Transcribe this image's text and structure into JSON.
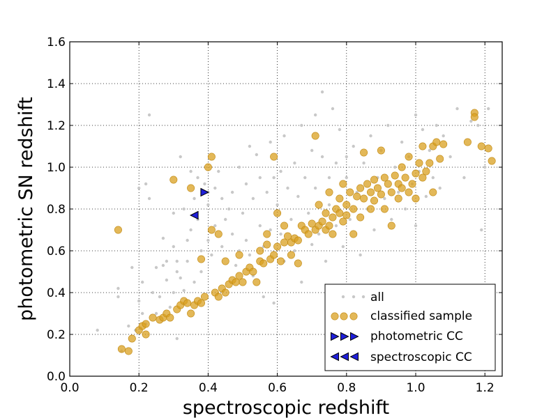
{
  "chart_data": {
    "type": "scatter",
    "title": "",
    "xlabel": "spectroscopic redshift",
    "ylabel": "photometric SN redshift",
    "xlim": [
      0.0,
      1.25
    ],
    "ylim": [
      0.0,
      1.6
    ],
    "xticks": [
      "0.0",
      "0.2",
      "0.4",
      "0.6",
      "0.8",
      "1.0",
      "1.2"
    ],
    "yticks": [
      "0.0",
      "0.2",
      "0.4",
      "0.6",
      "0.8",
      "1.0",
      "1.2",
      "1.4",
      "1.6"
    ],
    "grid": true,
    "legend_position": "lower-right",
    "colors": {
      "all": "#c8c8c8",
      "classified": "#daa020",
      "cc_fill": "#1f1fd8",
      "cc_edge": "#000000"
    },
    "series": [
      {
        "name": "all",
        "marker": "small-dot",
        "points": [
          [
            0.08,
            0.22
          ],
          [
            0.14,
            0.38
          ],
          [
            0.14,
            0.42
          ],
          [
            0.15,
            0.12
          ],
          [
            0.17,
            0.24
          ],
          [
            0.18,
            0.52
          ],
          [
            0.19,
            0.22
          ],
          [
            0.2,
            0.36
          ],
          [
            0.2,
            0.9
          ],
          [
            0.21,
            0.45
          ],
          [
            0.21,
            0.3
          ],
          [
            0.22,
            0.25
          ],
          [
            0.22,
            0.92
          ],
          [
            0.23,
            0.85
          ],
          [
            0.23,
            1.25
          ],
          [
            0.24,
            0.4
          ],
          [
            0.25,
            0.3
          ],
          [
            0.25,
            0.52
          ],
          [
            0.26,
            0.38
          ],
          [
            0.27,
            0.53
          ],
          [
            0.27,
            0.66
          ],
          [
            0.28,
            0.46
          ],
          [
            0.28,
            0.55
          ],
          [
            0.29,
            0.33
          ],
          [
            0.3,
            0.78
          ],
          [
            0.3,
            0.4
          ],
          [
            0.3,
            0.62
          ],
          [
            0.31,
            0.55
          ],
          [
            0.31,
            0.18
          ],
          [
            0.31,
            0.5
          ],
          [
            0.32,
            0.47
          ],
          [
            0.32,
            1.05
          ],
          [
            0.33,
            0.8
          ],
          [
            0.33,
            0.41
          ],
          [
            0.34,
            0.65
          ],
          [
            0.34,
            0.55
          ],
          [
            0.35,
            0.7
          ],
          [
            0.35,
            0.98
          ],
          [
            0.36,
            0.85
          ],
          [
            0.36,
            0.45
          ],
          [
            0.37,
            0.95
          ],
          [
            0.37,
            0.75
          ],
          [
            0.38,
            0.6
          ],
          [
            0.38,
            0.5
          ],
          [
            0.39,
            0.92
          ],
          [
            0.4,
            0.82
          ],
          [
            0.4,
            0.88
          ],
          [
            0.4,
            0.65
          ],
          [
            0.41,
            0.58
          ],
          [
            0.42,
            0.9
          ],
          [
            0.42,
            0.72
          ],
          [
            0.43,
            0.98
          ],
          [
            0.44,
            0.85
          ],
          [
            0.44,
            0.62
          ],
          [
            0.45,
            0.75
          ],
          [
            0.46,
            0.8
          ],
          [
            0.47,
            0.68
          ],
          [
            0.47,
            0.88
          ],
          [
            0.48,
            0.53
          ],
          [
            0.49,
            1.0
          ],
          [
            0.49,
            0.6
          ],
          [
            0.5,
            0.78
          ],
          [
            0.51,
            0.92
          ],
          [
            0.51,
            0.65
          ],
          [
            0.52,
            1.1
          ],
          [
            0.52,
            0.58
          ],
          [
            0.53,
            0.85
          ],
          [
            0.53,
            0.48
          ],
          [
            0.54,
            1.06
          ],
          [
            0.55,
            0.95
          ],
          [
            0.55,
            0.72
          ],
          [
            0.56,
            0.38
          ],
          [
            0.56,
            0.62
          ],
          [
            0.57,
            0.88
          ],
          [
            0.58,
            1.12
          ],
          [
            0.58,
            0.7
          ],
          [
            0.59,
            0.95
          ],
          [
            0.59,
            0.35
          ],
          [
            0.6,
            0.82
          ],
          [
            0.61,
            0.68
          ],
          [
            0.61,
            0.98
          ],
          [
            0.62,
            1.15
          ],
          [
            0.62,
            0.55
          ],
          [
            0.63,
            0.9
          ],
          [
            0.64,
            0.75
          ],
          [
            0.65,
            1.02
          ],
          [
            0.65,
            0.6
          ],
          [
            0.66,
            0.86
          ],
          [
            0.67,
            1.2
          ],
          [
            0.67,
            0.45
          ],
          [
            0.68,
            0.95
          ],
          [
            0.69,
            0.78
          ],
          [
            0.7,
            1.08
          ],
          [
            0.7,
            0.63
          ],
          [
            0.71,
            0.9
          ],
          [
            0.71,
            1.25
          ],
          [
            0.72,
            0.68
          ],
          [
            0.73,
            1.36
          ],
          [
            0.73,
            1.05
          ],
          [
            0.74,
            0.55
          ],
          [
            0.75,
            0.95
          ],
          [
            0.75,
            0.82
          ],
          [
            0.76,
            1.28
          ],
          [
            0.77,
            0.72
          ],
          [
            0.77,
            1.02
          ],
          [
            0.78,
            1.18
          ],
          [
            0.79,
            0.62
          ],
          [
            0.8,
            0.95
          ],
          [
            0.8,
            1.05
          ],
          [
            0.81,
            0.75
          ],
          [
            0.82,
            1.1
          ],
          [
            0.83,
            0.88
          ],
          [
            0.84,
            0.58
          ],
          [
            0.85,
            1.02
          ],
          [
            0.86,
            0.8
          ],
          [
            0.87,
            1.15
          ],
          [
            0.88,
            0.7
          ],
          [
            0.89,
            0.95
          ],
          [
            0.9,
            1.08
          ],
          [
            0.91,
            0.85
          ],
          [
            0.92,
            1.2
          ],
          [
            0.93,
            0.75
          ],
          [
            0.94,
            1.0
          ],
          [
            0.95,
            0.88
          ],
          [
            0.96,
            1.12
          ],
          [
            0.97,
            0.8
          ],
          [
            0.98,
            1.05
          ],
          [
            0.99,
            0.92
          ],
          [
            1.0,
            1.25
          ],
          [
            1.0,
            0.72
          ],
          [
            1.01,
            0.98
          ],
          [
            1.02,
            1.18
          ],
          [
            1.03,
            0.86
          ],
          [
            1.04,
            1.08
          ],
          [
            1.05,
            0.95
          ],
          [
            1.06,
            1.2
          ],
          [
            1.07,
            0.9
          ],
          [
            1.08,
            1.15
          ],
          [
            1.1,
            1.05
          ],
          [
            1.12,
            1.28
          ],
          [
            1.14,
            0.95
          ],
          [
            1.16,
            1.22
          ],
          [
            1.18,
            1.2
          ],
          [
            1.19,
            0.7
          ],
          [
            1.2,
            1.0
          ],
          [
            1.21,
            1.28
          ]
        ]
      },
      {
        "name": "classified sample",
        "marker": "circle",
        "points": [
          [
            0.14,
            0.7
          ],
          [
            0.15,
            0.13
          ],
          [
            0.17,
            0.12
          ],
          [
            0.18,
            0.18
          ],
          [
            0.2,
            0.22
          ],
          [
            0.21,
            0.24
          ],
          [
            0.22,
            0.2
          ],
          [
            0.22,
            0.25
          ],
          [
            0.24,
            0.28
          ],
          [
            0.26,
            0.27
          ],
          [
            0.27,
            0.28
          ],
          [
            0.28,
            0.3
          ],
          [
            0.29,
            0.28
          ],
          [
            0.3,
            0.94
          ],
          [
            0.31,
            0.32
          ],
          [
            0.32,
            0.34
          ],
          [
            0.33,
            0.36
          ],
          [
            0.34,
            0.35
          ],
          [
            0.35,
            0.3
          ],
          [
            0.35,
            0.9
          ],
          [
            0.36,
            0.34
          ],
          [
            0.37,
            0.36
          ],
          [
            0.38,
            0.35
          ],
          [
            0.38,
            0.56
          ],
          [
            0.39,
            0.38
          ],
          [
            0.4,
            1.0
          ],
          [
            0.41,
            1.05
          ],
          [
            0.41,
            0.7
          ],
          [
            0.42,
            0.4
          ],
          [
            0.43,
            0.38
          ],
          [
            0.43,
            0.68
          ],
          [
            0.44,
            0.42
          ],
          [
            0.45,
            0.4
          ],
          [
            0.45,
            0.55
          ],
          [
            0.46,
            0.44
          ],
          [
            0.47,
            0.46
          ],
          [
            0.48,
            0.45
          ],
          [
            0.49,
            0.58
          ],
          [
            0.49,
            0.48
          ],
          [
            0.5,
            0.45
          ],
          [
            0.51,
            0.5
          ],
          [
            0.52,
            0.52
          ],
          [
            0.53,
            0.5
          ],
          [
            0.54,
            0.45
          ],
          [
            0.55,
            0.6
          ],
          [
            0.55,
            0.55
          ],
          [
            0.56,
            0.54
          ],
          [
            0.57,
            0.63
          ],
          [
            0.57,
            0.68
          ],
          [
            0.58,
            0.56
          ],
          [
            0.59,
            0.58
          ],
          [
            0.59,
            1.05
          ],
          [
            0.6,
            0.62
          ],
          [
            0.6,
            0.78
          ],
          [
            0.61,
            0.55
          ],
          [
            0.62,
            0.64
          ],
          [
            0.62,
            0.72
          ],
          [
            0.63,
            0.67
          ],
          [
            0.64,
            0.58
          ],
          [
            0.64,
            0.64
          ],
          [
            0.65,
            0.66
          ],
          [
            0.66,
            0.65
          ],
          [
            0.66,
            0.54
          ],
          [
            0.67,
            0.72
          ],
          [
            0.68,
            0.7
          ],
          [
            0.69,
            0.68
          ],
          [
            0.7,
            0.73
          ],
          [
            0.71,
            0.7
          ],
          [
            0.71,
            1.15
          ],
          [
            0.72,
            0.72
          ],
          [
            0.72,
            0.82
          ],
          [
            0.73,
            0.74
          ],
          [
            0.74,
            0.7
          ],
          [
            0.74,
            0.78
          ],
          [
            0.75,
            0.72
          ],
          [
            0.75,
            0.88
          ],
          [
            0.76,
            0.76
          ],
          [
            0.76,
            0.68
          ],
          [
            0.77,
            0.8
          ],
          [
            0.78,
            0.78
          ],
          [
            0.78,
            0.85
          ],
          [
            0.79,
            0.74
          ],
          [
            0.79,
            0.92
          ],
          [
            0.8,
            0.82
          ],
          [
            0.8,
            0.77
          ],
          [
            0.81,
            0.88
          ],
          [
            0.82,
            0.8
          ],
          [
            0.82,
            0.68
          ],
          [
            0.83,
            0.86
          ],
          [
            0.84,
            0.9
          ],
          [
            0.84,
            0.76
          ],
          [
            0.85,
            0.85
          ],
          [
            0.85,
            1.07
          ],
          [
            0.86,
            0.92
          ],
          [
            0.87,
            0.88
          ],
          [
            0.87,
            0.8
          ],
          [
            0.88,
            0.94
          ],
          [
            0.88,
            0.84
          ],
          [
            0.89,
            0.9
          ],
          [
            0.9,
            0.87
          ],
          [
            0.9,
            1.08
          ],
          [
            0.91,
            0.95
          ],
          [
            0.91,
            0.8
          ],
          [
            0.92,
            0.92
          ],
          [
            0.93,
            0.88
          ],
          [
            0.93,
            0.72
          ],
          [
            0.94,
            0.96
          ],
          [
            0.95,
            0.92
          ],
          [
            0.95,
            0.85
          ],
          [
            0.96,
            1.0
          ],
          [
            0.96,
            0.9
          ],
          [
            0.97,
            0.95
          ],
          [
            0.98,
            1.05
          ],
          [
            0.98,
            0.88
          ],
          [
            0.99,
            0.92
          ],
          [
            1.0,
            0.97
          ],
          [
            1.0,
            0.85
          ],
          [
            1.01,
            1.02
          ],
          [
            1.02,
            0.95
          ],
          [
            1.02,
            1.1
          ],
          [
            1.03,
            0.98
          ],
          [
            1.04,
            1.02
          ],
          [
            1.05,
            0.88
          ],
          [
            1.05,
            1.1
          ],
          [
            1.06,
            1.12
          ],
          [
            1.07,
            1.04
          ],
          [
            1.08,
            1.11
          ],
          [
            1.15,
            1.12
          ],
          [
            1.17,
            1.26
          ],
          [
            1.17,
            1.24
          ],
          [
            1.19,
            1.1
          ],
          [
            1.21,
            1.09
          ],
          [
            1.22,
            1.03
          ]
        ]
      },
      {
        "name": "photometric CC",
        "marker": "triangle-right",
        "points": [
          [
            0.39,
            0.88
          ]
        ]
      },
      {
        "name": "spectroscopic CC",
        "marker": "triangle-left",
        "points": [
          [
            0.36,
            0.77
          ]
        ]
      }
    ]
  }
}
